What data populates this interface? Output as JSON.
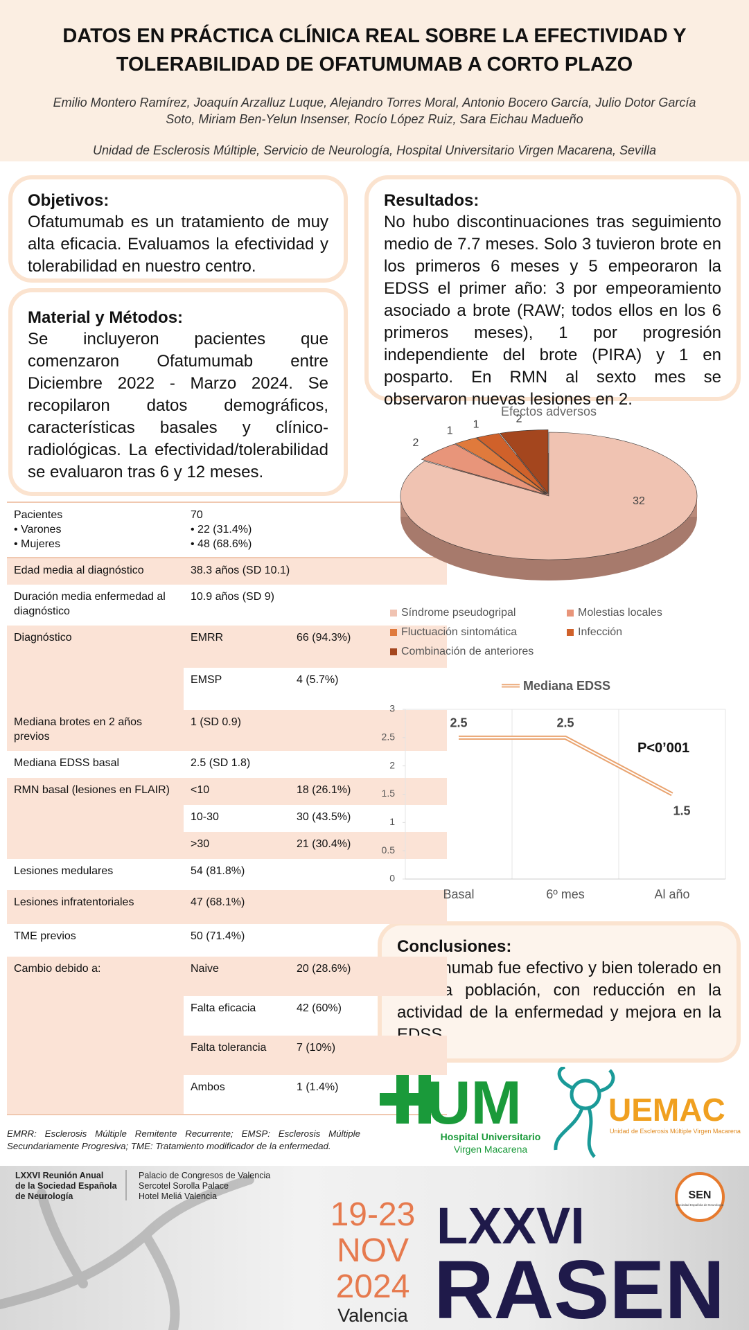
{
  "header": {
    "title_lines": [
      "DATOS EN PRÁCTICA CLÍNICA REAL SOBRE LA EFECTIVIDAD Y",
      "TOLERABILIDAD DE OFATUMUMAB A CORTO PLAZO"
    ],
    "authors": "Emilio Montero Ramírez, Joaquín Arzalluz Luque, Alejandro Torres Moral, Antonio Bocero García, Julio Dotor García Soto, Miriam Ben-Yelun Insenser, Rocío López Ruiz, Sara Eichau Madueño",
    "affiliation": "Unidad de Esclerosis Múltiple, Servicio de Neurología, Hospital Universitario Virgen Macarena, Sevilla"
  },
  "sections": {
    "objetivos": {
      "heading": "Objetivos:",
      "text": "Ofatumumab es un tratamiento de muy alta eficacia. Evaluamos la efectividad y tolerabilidad en nuestro centro."
    },
    "material": {
      "heading": "Material y Métodos:",
      "text": "Se incluyeron pacientes que comenzaron Ofatumumab entre Diciembre 2022 - Marzo 2024. Se recopilaron datos demográficos, características basales y clínico-radiológicas. La efectividad/tolerabilidad se evaluaron tras 6 y 12 meses."
    },
    "resultados": {
      "heading": "Resultados:",
      "text": "No hubo discontinuaciones tras seguimiento medio de 7.7 meses. Solo 3 tuvieron brote en los primeros 6 meses y 5 empeoraron la EDSS el primer año: 3 por empeoramiento asociado a brote (RAW; todos ellos en los 6 primeros meses), 1 por progresión independiente del brote (PIRA) y 1 en posparto. En RMN al sexto mes se observaron nuevas lesiones en 2."
    },
    "conclusiones": {
      "heading": "Conclusiones:",
      "text": "Ofatumumab fue efectivo y bien tolerado en nuestra población, con reducción en la actividad de la enfermedad y mejora en la EDSS."
    }
  },
  "table": {
    "pacientes": {
      "label": [
        "Pacientes",
        "• Varones",
        "• Mujeres"
      ],
      "value": [
        "70",
        "• 22 (31.4%)",
        "• 48 (68.6%)"
      ]
    },
    "edad": [
      "Edad media al diagnóstico",
      "38.3 años (SD 10.1)"
    ],
    "duracion": [
      "Duración media enfermedad al diagnóstico",
      "10.9 años (SD 9)"
    ],
    "diagnostico": {
      "label": "Diagnóstico",
      "rows": [
        [
          "EMRR",
          "66 (94.3%)"
        ],
        [
          "EMSP",
          "4 (5.7%)"
        ]
      ]
    },
    "brotes": [
      "Mediana brotes en 2 años previos",
      "1 (SD 0.9)"
    ],
    "edss": [
      "Mediana EDSS basal",
      "2.5 (SD 1.8)"
    ],
    "rmn": {
      "label": "RMN basal (lesiones en FLAIR)",
      "rows": [
        [
          "<10",
          "18 (26.1%)"
        ],
        [
          "10-30",
          "30 (43.5%)"
        ],
        [
          ">30",
          "21 (30.4%)"
        ]
      ]
    },
    "medulares": [
      "Lesiones medulares",
      "54 (81.8%)"
    ],
    "infratentoriales": [
      "Lesiones infratentoriales",
      "47 (68.1%)"
    ],
    "tme": [
      "TME previos",
      "50 (71.4%)"
    ],
    "cambio": {
      "label": "Cambio debido a:",
      "rows": [
        [
          "Naive",
          "20 (28.6%)"
        ],
        [
          "Falta eficacia",
          "42 (60%)"
        ],
        [
          "Falta tolerancia",
          "7 (10%)"
        ],
        [
          "Ambos",
          "1 (1.4%)"
        ]
      ]
    }
  },
  "footnote": "EMRR: Esclerosis Múltiple Remitente Recurrente; EMSP: Esclerosis Múltiple Secundariamente Progresiva; TME: Tratamiento modificador de la enfermedad.",
  "chart_data": [
    {
      "type": "pie",
      "title": "Efectos adversos",
      "categories": [
        "Síndrome pseudogripal",
        "Molestias locales",
        "Fluctuación sintomática",
        "Infección",
        "Combinación de anteriores"
      ],
      "values": [
        32,
        2,
        1,
        1,
        2
      ],
      "colors": [
        "#f0c3b2",
        "#e8957a",
        "#e07a3c",
        "#d0612a",
        "#a4461e"
      ]
    },
    {
      "type": "line",
      "categories": [
        "Basal",
        "6º mes",
        "Al año"
      ],
      "series": [
        {
          "name": "Mediana EDSS",
          "color": "#e9a36f",
          "values": [
            2.5,
            2.5,
            1.5
          ]
        }
      ],
      "ylim": [
        0,
        3
      ],
      "yticks": [
        0,
        0.5,
        1,
        1.5,
        2,
        2.5,
        3
      ],
      "annotation": "P<0’001"
    }
  ],
  "logos": {
    "hum": {
      "letters": "UM",
      "line1": "Hospital Universitario",
      "line2": "Virgen Macarena"
    },
    "uemac": {
      "name": "UEMAC",
      "sub": "Unidad de Esclerosis Múltiple Virgen Macarena"
    }
  },
  "footer": {
    "meeting": [
      "LXXVI Reunión Anual",
      "de la Sociedad Española",
      "de Neurología"
    ],
    "venues": [
      "Palacio de Congresos de Valencia",
      "Sercotel Sorolla Palace",
      "Hotel Meliá Valencia"
    ],
    "dates": [
      "19-23",
      "NOV",
      "2024"
    ],
    "city": "Valencia",
    "edition": "LXXVI",
    "brand": "RASEN",
    "sen": "SEN",
    "sen_sub": "Sociedad Española de Neurología"
  }
}
